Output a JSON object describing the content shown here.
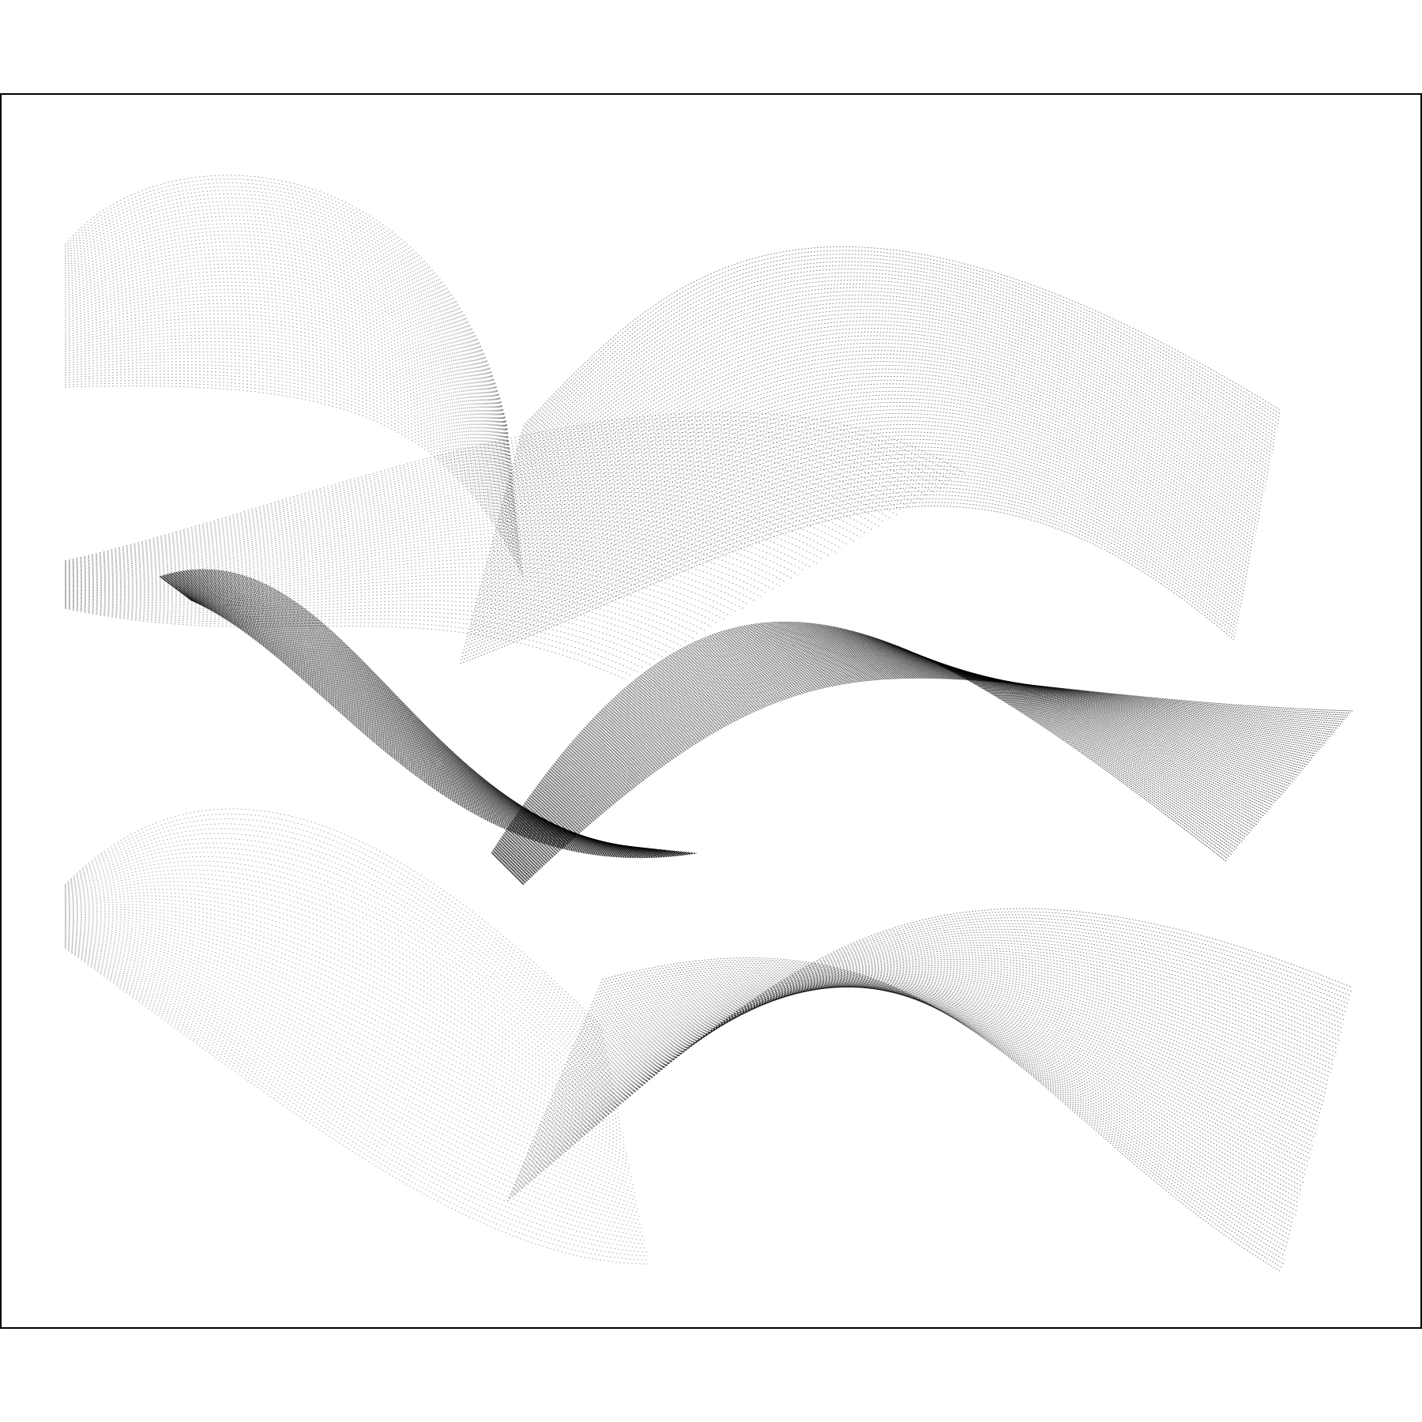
{
  "artwork": {
    "kind": "generative line-art",
    "palette": {
      "background": "#ffffff",
      "stroke": "#000000",
      "frame": "#000000"
    },
    "style": "dense parallel dotted strokes forming twisting ribbons",
    "ribbons": [
      {
        "name": "top-left-fan",
        "density": "light"
      },
      {
        "name": "top-right-band",
        "density": "medium"
      },
      {
        "name": "upper-left-wave",
        "density": "light"
      },
      {
        "name": "central-dark-ribbon",
        "density": "heavy"
      },
      {
        "name": "middle-crossing-ribbon",
        "density": "heavy"
      },
      {
        "name": "lower-left-fan",
        "density": "light"
      },
      {
        "name": "lower-right-band",
        "density": "medium"
      }
    ]
  }
}
